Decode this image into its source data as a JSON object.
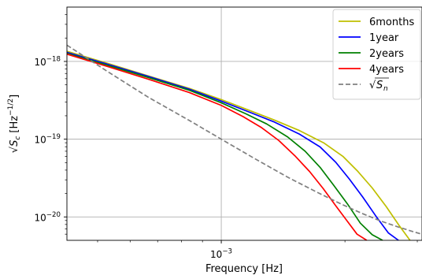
{
  "chart_data": {
    "type": "line",
    "xlabel": "Frequency [Hz]",
    "ylabel": "√S_c [Hz^-1/2]",
    "xscale": "log",
    "yscale": "log",
    "xlim": [
      0.000421,
      0.00308
    ],
    "ylim": [
      5e-21,
      5e-18
    ],
    "grid": true,
    "legend_position": "top-right",
    "xticks": [
      {
        "value": 0.001,
        "label": "10",
        "exp": "−3"
      }
    ],
    "yticks": [
      {
        "value": 1e-18,
        "label": "10",
        "exp": "−18"
      },
      {
        "value": 1e-19,
        "label": "10",
        "exp": "−19"
      },
      {
        "value": 1e-20,
        "label": "10",
        "exp": "−20"
      }
    ],
    "series": [
      {
        "name": "6months",
        "color": "#bfbf00",
        "dash": "solid",
        "x": [
          0.000421,
          0.000529,
          0.000665,
          0.000836,
          0.001,
          0.00117,
          0.00134,
          0.00155,
          0.00178,
          0.00198,
          0.00215,
          0.00233,
          0.00252,
          0.00271,
          0.00288
        ],
        "y": [
          1.35e-18,
          9.44e-19,
          6.49e-19,
          4.5e-19,
          3.23e-19,
          2.35e-19,
          1.78e-19,
          1.29e-19,
          8.89e-20,
          5.97e-20,
          3.85e-20,
          2.36e-20,
          1.36e-20,
          7.75e-21,
          5e-21
        ]
      },
      {
        "name": "1year",
        "color": "#0000ff",
        "dash": "solid",
        "x": [
          0.000421,
          0.000529,
          0.000665,
          0.000836,
          0.001,
          0.00117,
          0.00134,
          0.00155,
          0.00174,
          0.0019,
          0.00205,
          0.00221,
          0.00238,
          0.00255,
          0.0027
        ],
        "y": [
          1.31e-18,
          9.2e-19,
          6.4e-19,
          4.4e-19,
          3.09e-19,
          2.23e-19,
          1.68e-19,
          1.16e-19,
          7.94e-20,
          5.04e-20,
          3.07e-20,
          1.8e-20,
          1.02e-20,
          6.24e-21,
          5e-21
        ]
      },
      {
        "name": "2years",
        "color": "#008000",
        "dash": "solid",
        "x": [
          0.000421,
          0.000529,
          0.000665,
          0.000836,
          0.001,
          0.00115,
          0.00129,
          0.00145,
          0.0016,
          0.00174,
          0.00188,
          0.00203,
          0.00218,
          0.00233,
          0.00247
        ],
        "y": [
          1.27e-18,
          8.91e-19,
          6.21e-19,
          4.26e-19,
          2.94e-19,
          2.11e-19,
          1.57e-19,
          1.07e-19,
          7e-20,
          4.34e-20,
          2.53e-20,
          1.46e-20,
          8.32e-21,
          5.9e-21,
          5e-21
        ]
      },
      {
        "name": "4years",
        "color": "#ff0000",
        "dash": "solid",
        "x": [
          0.000421,
          0.000529,
          0.000665,
          0.000836,
          0.001,
          0.00113,
          0.00125,
          0.00138,
          0.00151,
          0.00164,
          0.00177,
          0.0019,
          0.00203,
          0.00214,
          0.00226
        ],
        "y": [
          1.24e-18,
          8.6e-19,
          5.9e-19,
          3.98e-19,
          2.72e-19,
          1.95e-19,
          1.42e-19,
          9.63e-20,
          6.13e-20,
          3.84e-20,
          2.32e-20,
          1.39e-20,
          8.7e-21,
          6e-21,
          5e-21
        ]
      },
      {
        "name": "√S_n",
        "color": "#808080",
        "dash": "dashed",
        "x": [
          0.000421,
          0.000529,
          0.000665,
          0.000836,
          0.001,
          0.0012,
          0.00145,
          0.0017,
          0.00195,
          0.0022,
          0.00245,
          0.0027,
          0.00295,
          0.00308
        ],
        "y": [
          1.62e-18,
          7.4e-19,
          3.45e-19,
          1.74e-19,
          1e-19,
          5.71e-20,
          3.25e-20,
          2.11e-20,
          1.48e-20,
          1.11e-20,
          8.82e-21,
          7.4e-21,
          6.4e-21,
          6e-21
        ]
      }
    ]
  }
}
